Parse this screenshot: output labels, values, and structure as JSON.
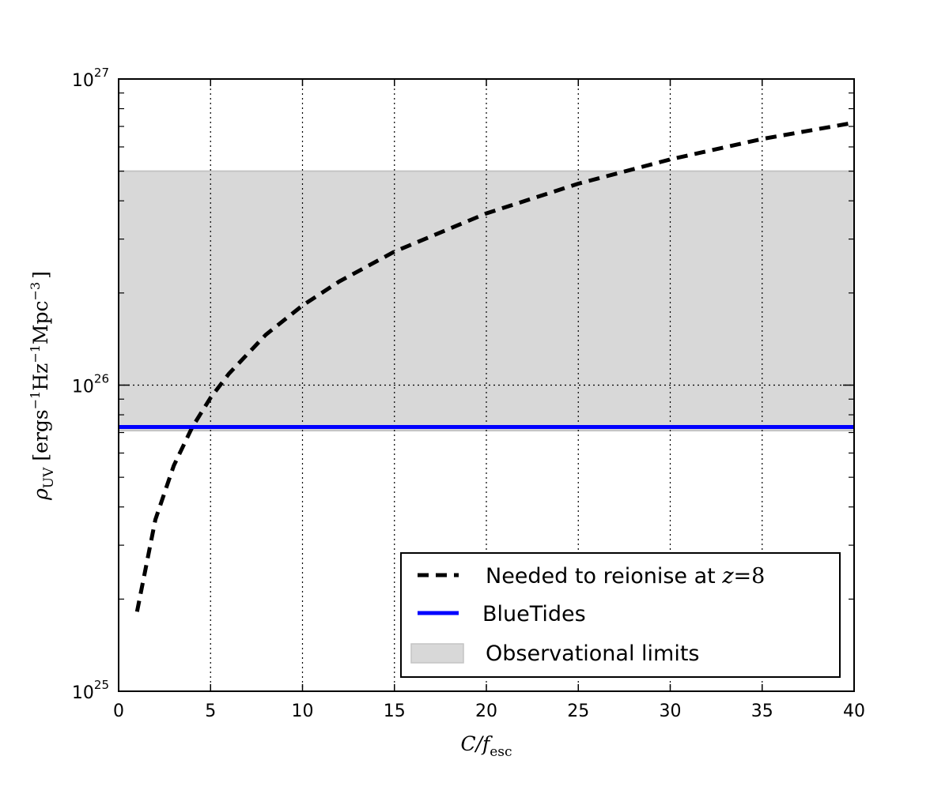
{
  "chart_data": {
    "type": "line",
    "xlabel": {
      "main": "C/f",
      "sub": "esc"
    },
    "ylabel": {
      "rho": "ρ",
      "rho_sub": "UV",
      "open": "[",
      "u1": "ergs",
      "u1_exp": "−1",
      "u2": "Hz",
      "u2_exp": "−1",
      "u3": "Mpc",
      "u3_exp": "−3",
      "close": "]"
    },
    "xlim": [
      0,
      40
    ],
    "ylim": [
      1e+25,
      1e+27
    ],
    "yscale": "log",
    "grid": true,
    "grid_style": "dotted",
    "x_ticks": [
      {
        "value": 0,
        "label": "0"
      },
      {
        "value": 5,
        "label": "5"
      },
      {
        "value": 10,
        "label": "10"
      },
      {
        "value": 15,
        "label": "15"
      },
      {
        "value": 20,
        "label": "20"
      },
      {
        "value": 25,
        "label": "25"
      },
      {
        "value": 30,
        "label": "30"
      },
      {
        "value": 35,
        "label": "35"
      },
      {
        "value": 40,
        "label": "40"
      }
    ],
    "y_ticks": [
      {
        "value": 1e+25,
        "base": "10",
        "exp": "25"
      },
      {
        "value": 1e+26,
        "base": "10",
        "exp": "26"
      },
      {
        "value": 1e+27,
        "base": "10",
        "exp": "27"
      }
    ],
    "series": [
      {
        "name": "Needed to reionise at z=8",
        "name_text": "Needed to reionise at ",
        "name_math": "z",
        "name_eq": "=8",
        "style": "dashed",
        "color": "#000000",
        "x": [
          1,
          2,
          3,
          4,
          5,
          6,
          8,
          10,
          12,
          15,
          20,
          25,
          30,
          35,
          40
        ],
        "y": [
          1.82e+25,
          3.64e+25,
          5.46e+25,
          7.28e+25,
          9.1e+25,
          1.09e+26,
          1.46e+26,
          1.82e+26,
          2.18e+26,
          2.73e+26,
          3.64e+26,
          4.55e+26,
          5.46e+26,
          6.37e+26,
          7.2e+26
        ]
      },
      {
        "name": "BlueTides",
        "style": "solid",
        "color": "#0000ff",
        "x": [
          0,
          40
        ],
        "y": [
          7.3e+25,
          7.3e+25
        ]
      }
    ],
    "bands": [
      {
        "name": "Observational limits",
        "color": "#d8d8d8",
        "edge_color": "#c4c4c4",
        "y_min": 7.1e+25,
        "y_max": 5e+26
      }
    ],
    "legend_placement": "lower-right"
  }
}
